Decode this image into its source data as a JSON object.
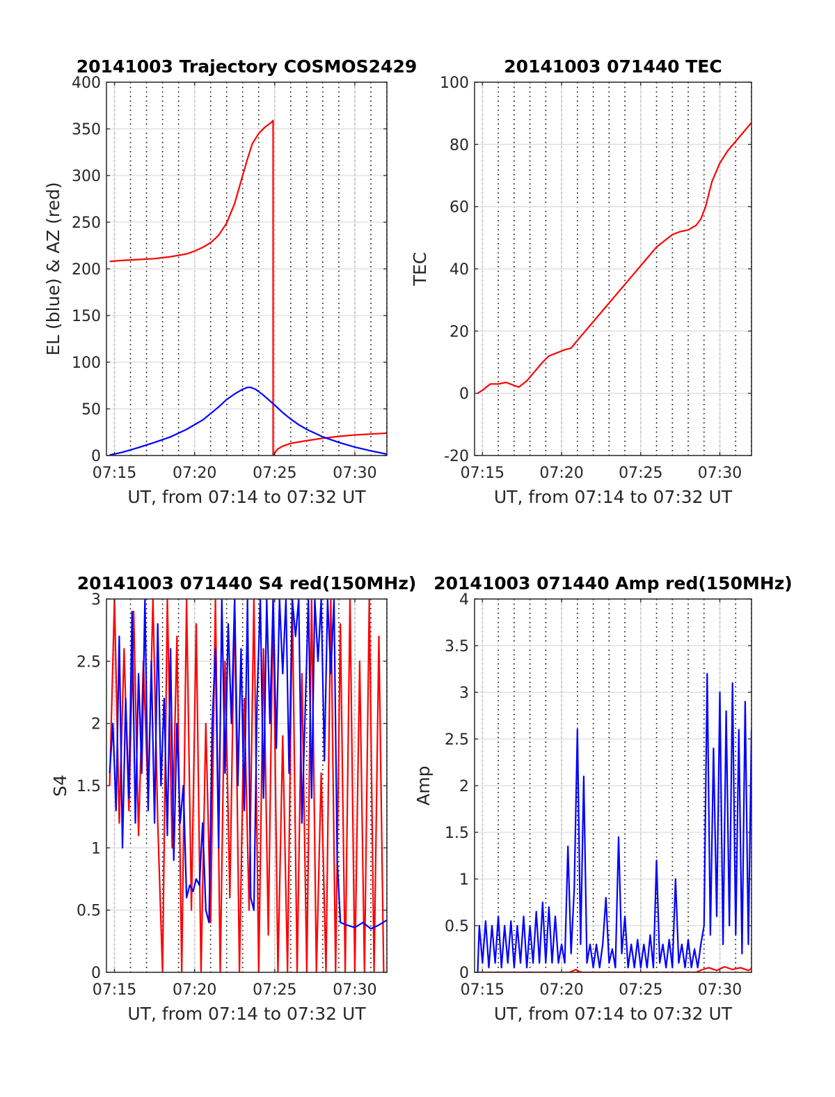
{
  "chart_data": [
    {
      "type": "line",
      "title": "20141003 Trajectory COSMOS2429",
      "xlabel": "UT, from 07:14 to 07:32 UT",
      "ylabel": "EL (blue) & AZ (red)",
      "xlim": [
        14.5,
        32
      ],
      "ylim": [
        0,
        400
      ],
      "xticks": [
        15,
        20,
        25,
        30
      ],
      "xtick_labels": [
        "07:15",
        "07:20",
        "07:25",
        "07:30"
      ],
      "yticks": [
        0,
        50,
        100,
        150,
        200,
        250,
        300,
        350,
        400
      ],
      "ytick_labels": [
        "0",
        "50",
        "100",
        "150",
        "200",
        "250",
        "300",
        "350",
        "400"
      ],
      "series": [
        {
          "color": "#ff0000",
          "x": [
            14.7,
            15.5,
            16.5,
            17.5,
            18.5,
            19.5,
            20.0,
            20.5,
            21.0,
            21.5,
            22.0,
            22.5,
            23.0,
            23.3,
            23.6,
            24.0,
            24.4,
            24.8,
            24.9,
            24.9,
            25.0,
            25.2,
            25.5,
            26.0,
            27.0,
            28.0,
            29.0,
            30.0,
            31.0,
            32.0
          ],
          "values": [
            208,
            209,
            210,
            211,
            213,
            216,
            219,
            223,
            228,
            236,
            249,
            270,
            300,
            318,
            334,
            345,
            352,
            357,
            359,
            0,
            3,
            7,
            10,
            13,
            16,
            18.5,
            20.5,
            22,
            23,
            24
          ]
        },
        {
          "color": "#0000ff",
          "x": [
            14.7,
            15.5,
            16.5,
            17.5,
            18.5,
            19.5,
            20.5,
            21.5,
            22.0,
            22.5,
            23.0,
            23.3,
            23.5,
            23.8,
            24.2,
            24.6,
            25.0,
            25.5,
            26.0,
            26.5,
            27.0,
            28.0,
            29.0,
            30.0,
            31.0,
            32.0
          ],
          "values": [
            0.5,
            3.5,
            8.5,
            14,
            20,
            28,
            38,
            52,
            60,
            66,
            71,
            73,
            73,
            71,
            66,
            60,
            54,
            46,
            39,
            33,
            28,
            20,
            14,
            9,
            5,
            1.5
          ]
        }
      ],
      "grid": true,
      "dense_minor_grid": true
    },
    {
      "type": "line",
      "title": "20141003 071440 TEC",
      "xlabel": "UT, from 07:14 to 07:32 UT",
      "ylabel": "TEC",
      "xlim": [
        14.5,
        32
      ],
      "ylim": [
        -20,
        100
      ],
      "xticks": [
        15,
        20,
        25,
        30
      ],
      "xtick_labels": [
        "07:15",
        "07:20",
        "07:25",
        "07:30"
      ],
      "yticks": [
        -20,
        0,
        20,
        40,
        60,
        80,
        100
      ],
      "ytick_labels": [
        "-20",
        "0",
        "20",
        "40",
        "60",
        "80",
        "100"
      ],
      "series": [
        {
          "color": "#ff0000",
          "x": [
            14.7,
            15.0,
            15.5,
            16.0,
            16.5,
            17.0,
            17.3,
            17.8,
            18.3,
            18.8,
            19.2,
            19.7,
            20.2,
            20.6,
            21.0,
            21.5,
            22.0,
            22.5,
            23.0,
            23.5,
            24.0,
            24.5,
            25.0,
            25.5,
            26.0,
            26.5,
            27.0,
            27.5,
            28.0,
            28.5,
            28.8,
            29.1,
            29.5,
            30.0,
            30.5,
            31.0,
            31.5,
            32.0
          ],
          "values": [
            0,
            1,
            3,
            3,
            3.5,
            2.5,
            2,
            4,
            7,
            10,
            12,
            13,
            14,
            14.5,
            17,
            20,
            23,
            26,
            29,
            32,
            35,
            38,
            41,
            44,
            47,
            49,
            51,
            52,
            52.5,
            54,
            56,
            60,
            68,
            74,
            78,
            81,
            84,
            87
          ]
        }
      ],
      "grid": true,
      "dense_minor_grid": true
    },
    {
      "type": "line",
      "title": "20141003 071440 S4 red(150MHz)",
      "xlabel": "UT, from 07:14 to 07:32 UT",
      "ylabel": "S4",
      "xlim": [
        14.5,
        32
      ],
      "ylim": [
        0,
        3
      ],
      "xticks": [
        15,
        20,
        25,
        30
      ],
      "xtick_labels": [
        "07:15",
        "07:20",
        "07:25",
        "07:30"
      ],
      "yticks": [
        0,
        0.5,
        1,
        1.5,
        2,
        2.5,
        3
      ],
      "ytick_labels": [
        "0",
        "0.5",
        "1",
        "1.5",
        "2",
        "2.5",
        "3"
      ],
      "series": [
        {
          "color": "#ff0000",
          "x": [
            14.7,
            15.0,
            15.3,
            15.6,
            15.9,
            16.2,
            16.5,
            16.8,
            17.1,
            17.4,
            17.7,
            18.0,
            18.3,
            18.6,
            18.9,
            19.2,
            19.5,
            19.8,
            20.1,
            20.4,
            20.7,
            21.0,
            21.3,
            21.6,
            21.9,
            22.2,
            22.5,
            22.8,
            23.1,
            23.4,
            23.7,
            24.0,
            24.3,
            24.6,
            24.9,
            25.2,
            25.5,
            25.8,
            26.1,
            26.4,
            26.7,
            27.0,
            27.3,
            27.6,
            27.9,
            28.2,
            28.5,
            28.8,
            29.1,
            29.4,
            29.7,
            30.0,
            30.3,
            30.6,
            30.9,
            31.2,
            31.5,
            31.8
          ],
          "values": [
            1.5,
            3.0,
            1.2,
            2.6,
            1.3,
            2.9,
            1.1,
            2.5,
            1.4,
            3.0,
            1.2,
            0.0,
            3.0,
            1.0,
            2.7,
            0.0,
            3.0,
            0.5,
            2.8,
            0.0,
            2.0,
            0.4,
            3.0,
            0.0,
            2.5,
            0.6,
            3.0,
            0.0,
            2.2,
            0.5,
            3.0,
            0.0,
            2.6,
            0.3,
            3.0,
            0.0,
            1.9,
            0.0,
            3.0,
            0.0,
            2.4,
            0.0,
            3.0,
            0.0,
            1.6,
            0.0,
            3.0,
            0.0,
            2.8,
            0.0,
            3.0,
            0.0,
            2.5,
            0.0,
            3.0,
            0.0,
            2.7,
            0.0
          ]
        },
        {
          "color": "#0000ff",
          "x": [
            14.7,
            14.9,
            15.1,
            15.3,
            15.5,
            15.7,
            15.9,
            16.1,
            16.3,
            16.5,
            16.7,
            16.9,
            17.1,
            17.3,
            17.5,
            17.7,
            17.9,
            18.1,
            18.3,
            18.5,
            18.7,
            18.9,
            19.1,
            19.3,
            19.5,
            19.7,
            19.9,
            20.1,
            20.3,
            20.5,
            20.7,
            20.9,
            21.1,
            21.3,
            21.5,
            21.7,
            21.9,
            22.1,
            22.3,
            22.5,
            22.7,
            22.9,
            23.1,
            23.3,
            23.5,
            23.7,
            23.9,
            24.1,
            24.3,
            24.5,
            24.7,
            24.9,
            25.1,
            25.3,
            25.5,
            25.7,
            25.9,
            26.1,
            26.3,
            26.5,
            26.7,
            26.9,
            27.1,
            27.3,
            27.5,
            27.7,
            27.9,
            28.1,
            28.3,
            28.5,
            28.7,
            28.9,
            29.1,
            29.5,
            30.0,
            30.5,
            31.0,
            31.5,
            32.0
          ],
          "values": [
            1.6,
            2.0,
            1.3,
            2.7,
            1.0,
            2.2,
            1.4,
            2.9,
            1.2,
            2.4,
            1.6,
            3.0,
            1.3,
            2.5,
            1.2,
            2.8,
            1.5,
            2.2,
            1.1,
            2.6,
            0.9,
            2.0,
            1.2,
            1.5,
            0.6,
            0.7,
            0.65,
            0.75,
            0.7,
            1.2,
            0.5,
            0.4,
            2.0,
            2.6,
            1.0,
            3.0,
            1.6,
            2.8,
            2.0,
            3.0,
            1.5,
            2.6,
            1.3,
            3.0,
            0.6,
            0.5,
            2.2,
            3.0,
            1.4,
            3.0,
            2.0,
            3.0,
            1.8,
            3.0,
            2.4,
            3.0,
            1.6,
            3.0,
            2.7,
            3.0,
            1.2,
            2.1,
            3.0,
            1.4,
            3.0,
            2.5,
            3.0,
            1.7,
            3.0,
            2.4,
            3.0,
            0.9,
            0.4,
            0.38,
            0.36,
            0.4,
            0.35,
            0.38,
            0.42
          ]
        }
      ],
      "grid": true,
      "dense_minor_grid": true
    },
    {
      "type": "line",
      "title": "20141003 071440 Amp red(150MHz)",
      "xlabel": "UT, from 07:14 to 07:32 UT",
      "ylabel": "Amp",
      "xlim": [
        14.5,
        32
      ],
      "ylim": [
        0,
        4
      ],
      "xticks": [
        15,
        20,
        25,
        30
      ],
      "xtick_labels": [
        "07:15",
        "07:20",
        "07:25",
        "07:30"
      ],
      "yticks": [
        0,
        0.5,
        1,
        1.5,
        2,
        2.5,
        3,
        3.5,
        4
      ],
      "ytick_labels": [
        "0",
        "0.5",
        "1",
        "1.5",
        "2",
        "2.5",
        "3",
        "3.5",
        "4"
      ],
      "series": [
        {
          "color": "#ff0000",
          "x": [
            14.7,
            16.0,
            18.0,
            20.5,
            20.9,
            21.1,
            21.3,
            22.0,
            25.0,
            28.5,
            28.9,
            29.3,
            29.8,
            30.3,
            30.8,
            31.3,
            31.8,
            32.0
          ],
          "values": [
            0.0,
            0.0,
            0.0,
            0.0,
            0.03,
            0.01,
            0.0,
            0.0,
            0.0,
            0.0,
            0.03,
            0.05,
            0.02,
            0.06,
            0.03,
            0.05,
            0.02,
            0.04
          ]
        },
        {
          "color": "#0000ff",
          "x": [
            14.7,
            14.8,
            15.0,
            15.2,
            15.4,
            15.6,
            15.8,
            16.0,
            16.2,
            16.4,
            16.6,
            16.8,
            17.0,
            17.2,
            17.4,
            17.6,
            17.8,
            18.0,
            18.2,
            18.4,
            18.6,
            18.8,
            19.0,
            19.2,
            19.4,
            19.6,
            19.8,
            20.0,
            20.2,
            20.4,
            20.6,
            20.8,
            21.0,
            21.2,
            21.4,
            21.6,
            21.8,
            22.0,
            22.2,
            22.4,
            22.6,
            22.8,
            23.0,
            23.2,
            23.4,
            23.6,
            23.8,
            24.0,
            24.2,
            24.4,
            24.6,
            24.8,
            25.0,
            25.2,
            25.4,
            25.6,
            25.8,
            26.0,
            26.2,
            26.4,
            26.6,
            26.8,
            27.0,
            27.2,
            27.4,
            27.6,
            27.8,
            28.0,
            28.2,
            28.4,
            28.6,
            28.8,
            29.0,
            29.2,
            29.4,
            29.6,
            29.8,
            30.0,
            30.2,
            30.4,
            30.6,
            30.8,
            31.0,
            31.2,
            31.4,
            31.6,
            31.8,
            32.0
          ],
          "values": [
            0.0,
            0.5,
            0.1,
            0.55,
            0.05,
            0.5,
            0.1,
            0.6,
            0.05,
            0.5,
            0.1,
            0.55,
            0.05,
            0.5,
            0.1,
            0.6,
            0.05,
            0.5,
            0.1,
            0.65,
            0.1,
            0.75,
            0.1,
            0.7,
            0.1,
            0.6,
            0.1,
            0.3,
            0.1,
            1.35,
            0.2,
            0.9,
            2.6,
            0.3,
            2.1,
            0.1,
            0.3,
            0.05,
            0.3,
            0.05,
            0.3,
            0.8,
            0.1,
            0.25,
            0.05,
            1.45,
            0.2,
            0.6,
            0.05,
            0.3,
            0.05,
            0.35,
            0.05,
            0.3,
            0.05,
            0.4,
            0.05,
            1.2,
            0.1,
            0.3,
            0.05,
            0.35,
            0.05,
            1.0,
            0.1,
            0.3,
            0.05,
            0.35,
            0.05,
            0.25,
            0.05,
            0.3,
            0.5,
            3.2,
            0.4,
            2.4,
            0.6,
            3.0,
            0.3,
            2.8,
            0.5,
            3.1,
            0.4,
            2.6,
            0.2,
            2.9,
            0.3,
            2.6
          ]
        }
      ],
      "grid": true,
      "dense_minor_grid": true
    }
  ]
}
